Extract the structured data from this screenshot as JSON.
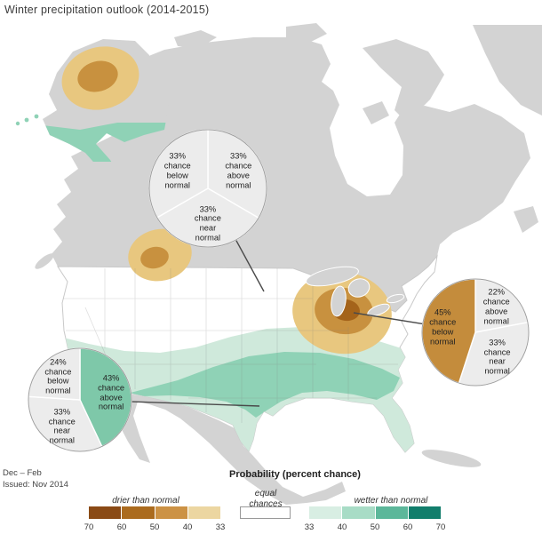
{
  "title": "Winter precipitation outlook (2014-2015)",
  "footer": {
    "period": "Dec – Feb",
    "issued": "Issued: Nov 2014"
  },
  "legend": {
    "title": "Probability (percent chance)",
    "drier_label": "drier than normal",
    "equal_label": "equal\nchances",
    "wetter_label": "wetter than normal",
    "drier_ticks": [
      "70",
      "60",
      "50",
      "40",
      "33"
    ],
    "wetter_ticks": [
      "33",
      "40",
      "50",
      "60",
      "70"
    ],
    "drier_colors": [
      "#8a4a15",
      "#ab6b1e",
      "#cc9245",
      "#ecd6a1"
    ],
    "wetter_colors": [
      "#d8eee3",
      "#a8dcc6",
      "#5cb79a",
      "#127e6c"
    ],
    "equal_color": "#ffffff"
  },
  "map": {
    "land_color": "#d3d3d3",
    "us_color": "#ffffff",
    "dry_light": "#e8c77f",
    "dry_mid": "#c8913f",
    "dry_dark": "#a4631a",
    "wet_light": "#cfe9db",
    "wet_mid": "#8fd2b6"
  },
  "chart_data": {
    "type": "pie",
    "pies": [
      {
        "name": "equal-chances",
        "slices": [
          {
            "label": "33%\nchance\nabove\nnormal",
            "value": 33.4,
            "color": "#ececec"
          },
          {
            "label": "33%\nchance\nnear\nnormal",
            "value": 33.3,
            "color": "#ececec"
          },
          {
            "label": "33%\nchance\nbelow\nnormal",
            "value": 33.3,
            "color": "#ececec"
          }
        ]
      },
      {
        "name": "great-lakes-outlook",
        "slices": [
          {
            "label": "22%\nchance\nabove\nnormal",
            "value": 22,
            "color": "#ececec"
          },
          {
            "label": "33%\nchance\nnear\nnormal",
            "value": 33,
            "color": "#ececec"
          },
          {
            "label": "45%\nchance\nbelow\nnormal",
            "value": 45,
            "color": "#c48c3c"
          }
        ]
      },
      {
        "name": "southern-outlook",
        "slices": [
          {
            "label": "43%\nchance\nabove\nnormal",
            "value": 43,
            "color": "#7ec8a9"
          },
          {
            "label": "33%\nchance\nnear\nnormal",
            "value": 33,
            "color": "#ececec"
          },
          {
            "label": "24%\nchance\nbelow\nnormal",
            "value": 24,
            "color": "#ececec"
          }
        ]
      }
    ]
  }
}
